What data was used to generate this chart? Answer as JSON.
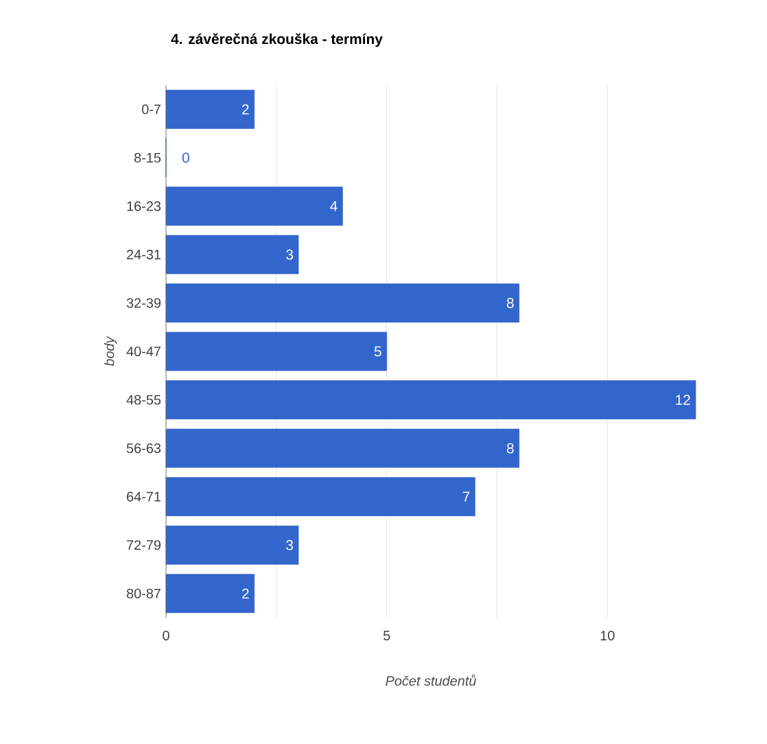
{
  "chart_data": {
    "type": "bar",
    "orientation": "horizontal",
    "title": "4. závěrečná zkouška - termíny",
    "xlabel": "Počet studentů",
    "ylabel": "body",
    "categories": [
      "0-7",
      "8-15",
      "16-23",
      "24-31",
      "32-39",
      "40-47",
      "48-55",
      "56-63",
      "64-71",
      "72-79",
      "80-87"
    ],
    "values": [
      2,
      0,
      4,
      3,
      8,
      5,
      12,
      8,
      7,
      3,
      2
    ],
    "color": "#3366cc",
    "xlim": [
      0,
      12
    ],
    "xticks": [
      0,
      {
        "value": 2.5,
        "label": null
      },
      5,
      {
        "value": 7.5,
        "label": null
      },
      10
    ],
    "grid": "x",
    "data_labels": true
  }
}
